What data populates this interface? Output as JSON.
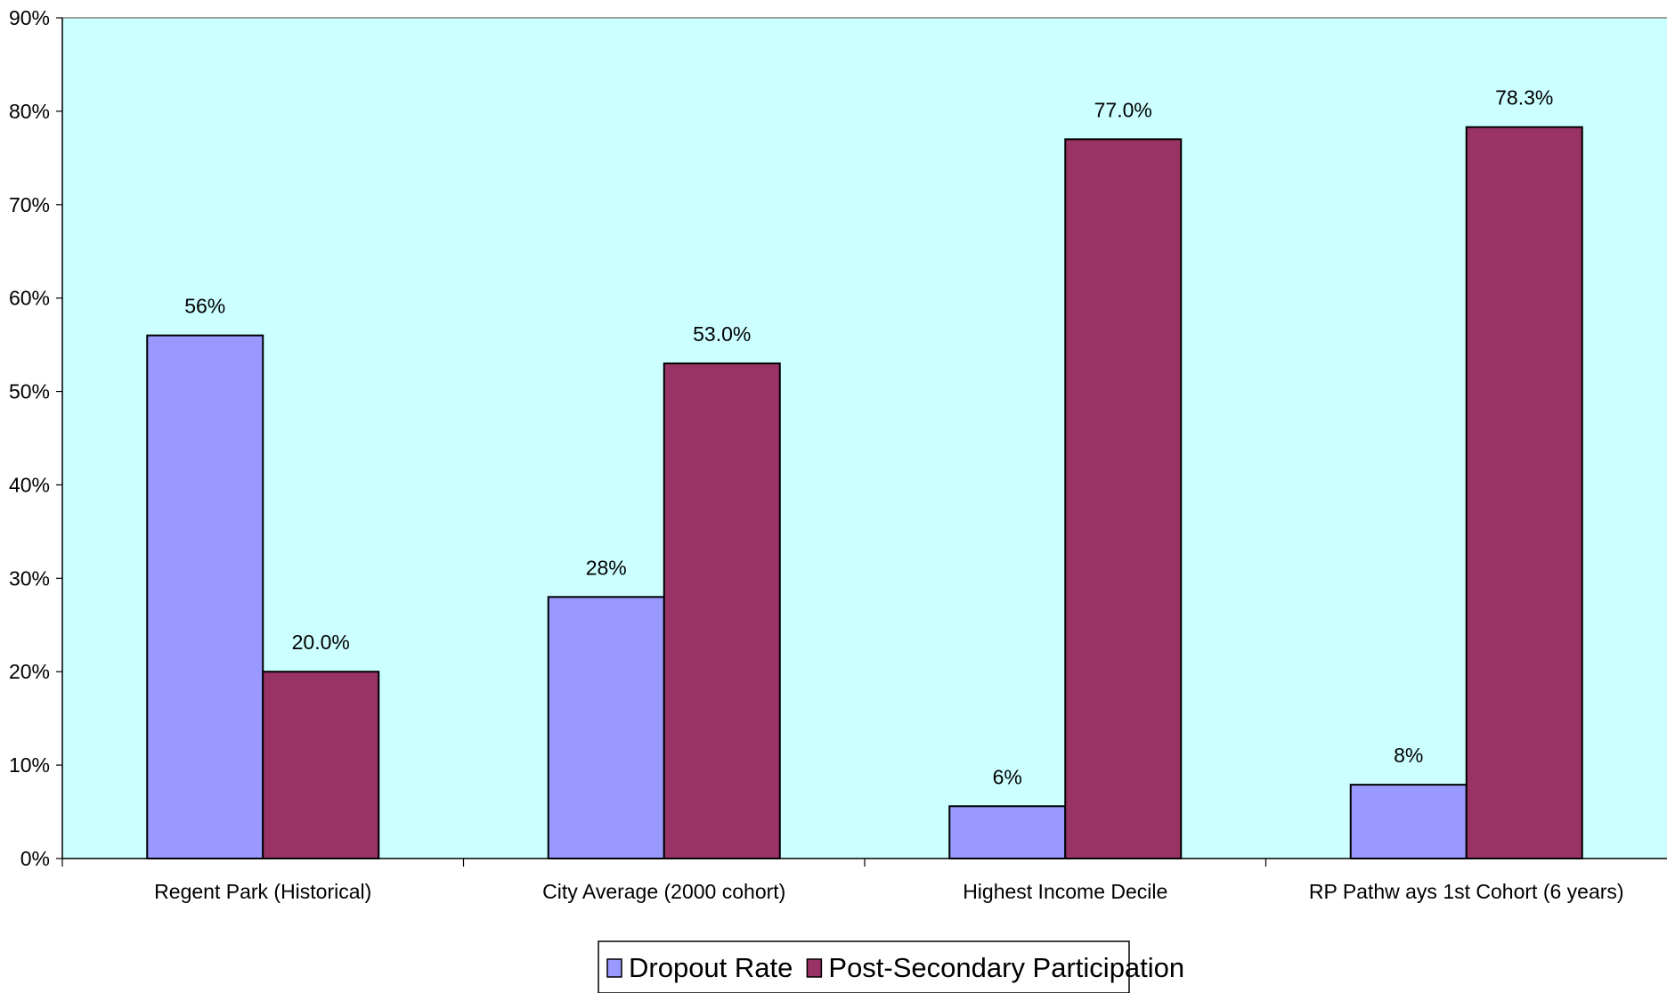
{
  "chart_data": {
    "type": "bar",
    "categories": [
      "Regent Park (Historical)",
      "City Average (2000 cohort)",
      "Highest Income Decile",
      "RP Pathw ays 1st Cohort (6 years)"
    ],
    "series": [
      {
        "name": "Dropout Rate",
        "values": [
          56,
          28,
          5.6,
          7.9
        ],
        "labels": [
          "56%",
          "28%",
          "6%",
          "8%"
        ],
        "color": "#9999FF"
      },
      {
        "name": "Post-Secondary Participation",
        "values": [
          20.0,
          53.0,
          77.0,
          78.3
        ],
        "labels": [
          "20.0%",
          "53.0%",
          "77.0%",
          "78.3%"
        ],
        "color": "#993366"
      }
    ],
    "title": "",
    "xlabel": "",
    "ylabel": "",
    "ylim": [
      0,
      90
    ],
    "yticks": [
      "0%",
      "10%",
      "20%",
      "30%",
      "40%",
      "50%",
      "60%",
      "70%",
      "80%",
      "90%"
    ],
    "plot_background": "#CCFFFF",
    "grid": false,
    "legend_position": "bottom-center"
  }
}
